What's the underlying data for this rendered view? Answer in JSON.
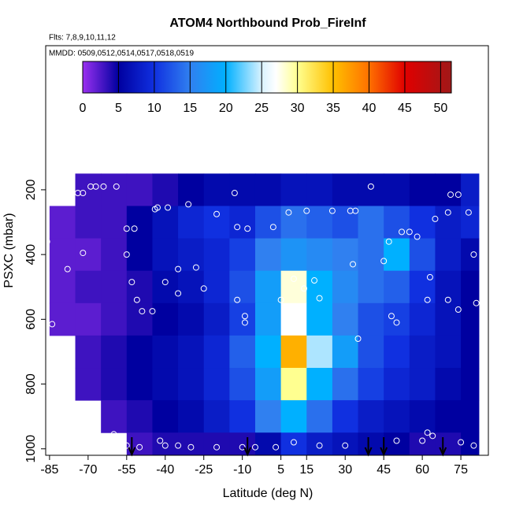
{
  "chart_data": {
    "type": "heatmap",
    "title": "ATOM4 Northbound Prob_FireInf",
    "annotations": [
      "Flts: 7,8,9,10,11,12",
      "MMDD: 0509,0512,0514,0517,0518,0519"
    ],
    "x_label": "Latitude (deg N)",
    "y_label": "PSXC (mbar)",
    "xlim": [
      -86.5,
      85.7
    ],
    "ylim": [
      -245,
      1020
    ],
    "y_reversed": true,
    "xticks": [
      -85,
      -70,
      -55,
      -40,
      -25,
      -10,
      5,
      15,
      30,
      45,
      60,
      75
    ],
    "yticks": [
      200,
      400,
      600,
      800,
      1000
    ],
    "x_bins": [
      -85,
      -75,
      -65,
      -55,
      -45,
      -35,
      -25,
      -15,
      -5,
      5,
      15,
      25,
      35,
      45,
      55,
      65,
      75,
      82
    ],
    "y_bins": [
      150,
      250,
      350,
      450,
      550,
      650,
      750,
      850,
      950,
      1020
    ],
    "values": [
      [
        null,
        3,
        3,
        3,
        4,
        5,
        6,
        6,
        6,
        7,
        7,
        6,
        6,
        6,
        5,
        5,
        8
      ],
      [
        2,
        3,
        3,
        5,
        7,
        9,
        10,
        9,
        12,
        14,
        13,
        12,
        14,
        12,
        10,
        8,
        9
      ],
      [
        2,
        2,
        3,
        5,
        7,
        8,
        9,
        11,
        15,
        17,
        16,
        15,
        14,
        20,
        12,
        8,
        6
      ],
      [
        2,
        3,
        3,
        4,
        6,
        7,
        9,
        12,
        18,
        28,
        20,
        16,
        14,
        13,
        10,
        7,
        5
      ],
      [
        2,
        2,
        3,
        4,
        5,
        6,
        8,
        11,
        18,
        27,
        20,
        15,
        12,
        11,
        9,
        7,
        5
      ],
      [
        null,
        3,
        4,
        5,
        6,
        7,
        9,
        13,
        20,
        36,
        24,
        18,
        12,
        10,
        8,
        7,
        5
      ],
      [
        null,
        3,
        4,
        5,
        6,
        7,
        9,
        12,
        18,
        30,
        20,
        14,
        11,
        9,
        8,
        6,
        5
      ],
      [
        null,
        null,
        3,
        4,
        5,
        6,
        8,
        10,
        15,
        20,
        14,
        10,
        8,
        7,
        6,
        5,
        5
      ],
      [
        null,
        null,
        null,
        3,
        4,
        4,
        4,
        4,
        6,
        10,
        8,
        7,
        6,
        5,
        4,
        4,
        5
      ]
    ],
    "clim": [
      0,
      51.5
    ],
    "cticks": [
      0,
      5,
      10,
      15,
      20,
      25,
      30,
      35,
      40,
      45,
      50
    ],
    "colormap": [
      {
        "value": 0,
        "color": "#9a30f0"
      },
      {
        "value": 5,
        "color": "#0000a0"
      },
      {
        "value": 10,
        "color": "#1030e0"
      },
      {
        "value": 15,
        "color": "#3080f0"
      },
      {
        "value": 20,
        "color": "#00b0ff"
      },
      {
        "value": 25,
        "color": "#d8f2ff"
      },
      {
        "value": 27,
        "color": "#ffffff"
      },
      {
        "value": 30,
        "color": "#ffff90"
      },
      {
        "value": 35,
        "color": "#ffc000"
      },
      {
        "value": 40,
        "color": "#ff7000"
      },
      {
        "value": 45,
        "color": "#e00000"
      },
      {
        "value": 51.5,
        "color": "#a01818"
      }
    ],
    "points": {
      "x": [
        -84,
        -80,
        -74,
        -72,
        -69,
        -67,
        -64,
        -59,
        -44,
        -43,
        -39,
        -31,
        -13,
        -20,
        -12,
        -8,
        2,
        8,
        15,
        25,
        32,
        34,
        40,
        47,
        52,
        55,
        58,
        65,
        70,
        78,
        71,
        74,
        -86,
        -78,
        -72,
        -55,
        -52,
        -55,
        -35,
        -28,
        -25,
        -35,
        -40,
        -51,
        -45,
        -49,
        -53,
        -12,
        -9,
        -9,
        5,
        10,
        14,
        18,
        20,
        33,
        45,
        48,
        50,
        62,
        63,
        70,
        74,
        81,
        80,
        -84,
        -80,
        -60,
        -42,
        -40,
        -35,
        -30,
        -20,
        -10,
        -5,
        3,
        10,
        20,
        30,
        50,
        60,
        62,
        64,
        75,
        80,
        35,
        -50,
        -55
      ],
      "y": [
        215,
        215,
        210,
        210,
        190,
        190,
        190,
        190,
        260,
        255,
        255,
        245,
        210,
        275,
        315,
        320,
        315,
        270,
        265,
        265,
        265,
        265,
        190,
        360,
        330,
        330,
        345,
        290,
        270,
        270,
        215,
        215,
        360,
        445,
        395,
        320,
        320,
        400,
        445,
        440,
        505,
        520,
        485,
        540,
        575,
        575,
        485,
        540,
        590,
        610,
        540,
        475,
        505,
        480,
        535,
        430,
        420,
        590,
        610,
        540,
        470,
        540,
        570,
        550,
        400,
        615,
        815,
        955,
        975,
        990,
        990,
        995,
        995,
        995,
        995,
        995,
        980,
        990,
        990,
        975,
        975,
        950,
        960,
        980,
        990,
        660,
        995,
        990
      ]
    },
    "arrows": [
      -53,
      -8,
      39,
      45,
      68
    ]
  }
}
